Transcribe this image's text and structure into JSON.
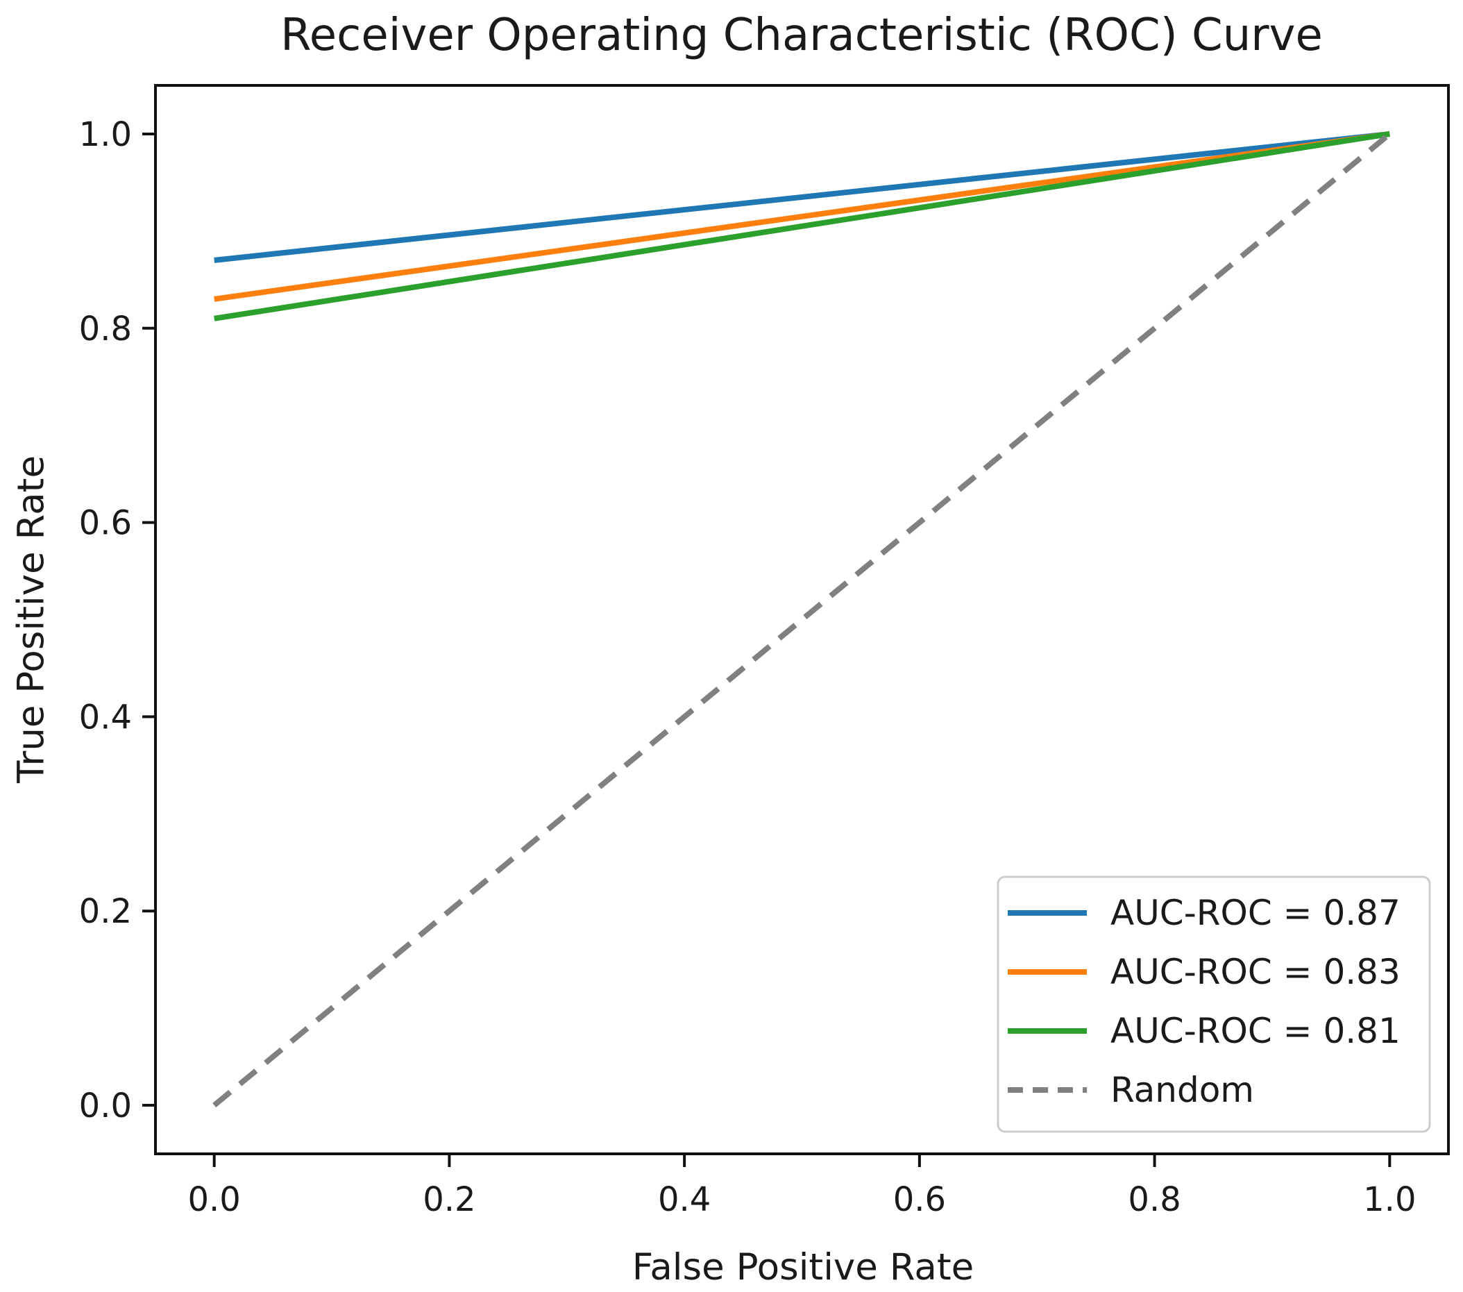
{
  "figure": {
    "title": "Receiver Operating Characteristic (ROC) Curve",
    "xlabel": "False Positive Rate",
    "ylabel": "True Positive Rate"
  },
  "chart_data": {
    "type": "line",
    "title": "Receiver Operating Characteristic (ROC) Curve",
    "xlabel": "False Positive Rate",
    "ylabel": "True Positive Rate",
    "xlim": [
      -0.05,
      1.05
    ],
    "ylim": [
      -0.05,
      1.05
    ],
    "xticks": [
      0.0,
      0.2,
      0.4,
      0.6,
      0.8,
      1.0
    ],
    "yticks": [
      0.0,
      0.2,
      0.4,
      0.6,
      0.8,
      1.0
    ],
    "xtick_labels": [
      "0.0",
      "0.2",
      "0.4",
      "0.6",
      "0.8",
      "1.0"
    ],
    "ytick_labels": [
      "0.0",
      "0.2",
      "0.4",
      "0.6",
      "0.8",
      "1.0"
    ],
    "grid": false,
    "legend_position": "lower right",
    "series": [
      {
        "name": "AUC-ROC = 0.87",
        "color": "#1f77b4",
        "style": "solid",
        "x": [
          0.0,
          1.0
        ],
        "y": [
          0.87,
          1.0
        ]
      },
      {
        "name": "AUC-ROC = 0.83",
        "color": "#ff7f0e",
        "style": "solid",
        "x": [
          0.0,
          1.0
        ],
        "y": [
          0.83,
          1.0
        ]
      },
      {
        "name": "AUC-ROC = 0.81",
        "color": "#2ca02c",
        "style": "solid",
        "x": [
          0.0,
          1.0
        ],
        "y": [
          0.81,
          1.0
        ]
      },
      {
        "name": "Random",
        "color": "#808080",
        "style": "dashed",
        "x": [
          0.0,
          1.0
        ],
        "y": [
          0.0,
          1.0
        ]
      }
    ],
    "colors": {
      "spine": "#111111",
      "legend_border": "#cccccc",
      "legend_background": "#ffffff"
    }
  }
}
